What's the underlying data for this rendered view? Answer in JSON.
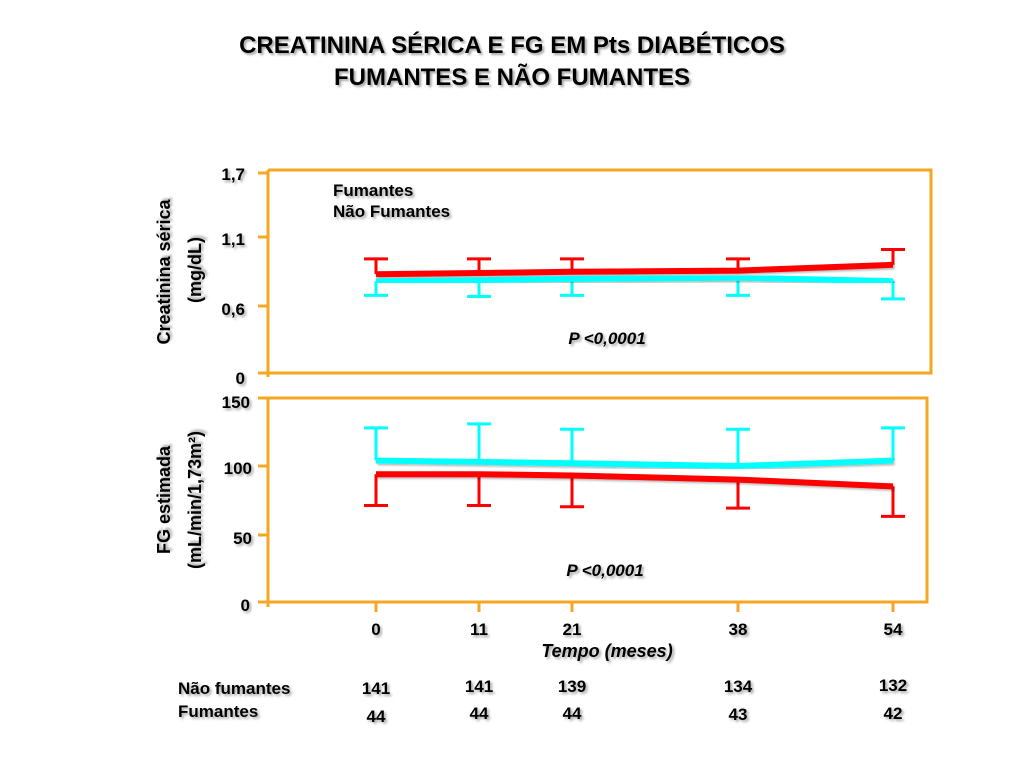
{
  "title": {
    "line1": "CREATININA SÉRICA E FG EM Pts DIABÉTICOS",
    "line2": "FUMANTES E NÃO FUMANTES"
  },
  "colors": {
    "frame": "#f5a623",
    "fumantes": "#ff0000",
    "nao_fumantes": "#00ffff"
  },
  "chart_data": [
    {
      "type": "line",
      "ylabel_line1": "Creatinina sérica",
      "ylabel_line2": "(mg/dL)",
      "y_ticks": [
        "1,7",
        "1,1",
        "0,6",
        "0"
      ],
      "y_tick_values": [
        1.7,
        1.1,
        0.6,
        0
      ],
      "ylim": [
        0,
        1.7
      ],
      "x": [
        0,
        11,
        21,
        38,
        54
      ],
      "legend": [
        "Fumantes",
        "Não Fumantes"
      ],
      "legend_position": "top-left",
      "annotation": "P <0,0001",
      "series": [
        {
          "name": "Fumantes",
          "values": [
            0.84,
            0.85,
            0.86,
            0.87,
            0.92
          ],
          "error_upper": [
            0.97,
            0.97,
            0.97,
            0.97,
            1.05
          ],
          "error_lower": null
        },
        {
          "name": "Não Fumantes",
          "values": [
            0.78,
            0.79,
            0.8,
            0.81,
            0.78
          ],
          "error_upper": null,
          "error_lower": [
            0.66,
            0.65,
            0.66,
            0.66,
            0.63
          ]
        }
      ]
    },
    {
      "type": "line",
      "ylabel_line1": "FG estimada",
      "ylabel_line2": "(mL/min/1,73m²)",
      "y_ticks": [
        "150",
        "100",
        "50",
        "0"
      ],
      "y_tick_values": [
        150,
        100,
        50,
        0
      ],
      "ylim": [
        0,
        150
      ],
      "x": [
        0,
        11,
        21,
        38,
        54
      ],
      "x_tick_labels": [
        "0",
        "11",
        "21",
        "38",
        "54"
      ],
      "xlabel": "Tempo (meses)",
      "annotation": "P <0,0001",
      "series": [
        {
          "name": "Fumantes",
          "values": [
            94,
            94,
            93,
            90,
            85
          ],
          "error_upper": null,
          "error_lower": [
            71,
            71,
            70,
            69,
            63
          ]
        },
        {
          "name": "Não Fumantes",
          "values": [
            104,
            103,
            102,
            100,
            104
          ],
          "error_upper": [
            128,
            131,
            127,
            127,
            128
          ],
          "error_lower": null
        }
      ]
    }
  ],
  "table": {
    "rows": [
      {
        "label": "Não fumantes",
        "values": [
          "141",
          "141",
          "139",
          "134",
          "132"
        ]
      },
      {
        "label": "Fumantes",
        "values": [
          "44",
          "44",
          "44",
          "43",
          "42"
        ]
      }
    ]
  }
}
